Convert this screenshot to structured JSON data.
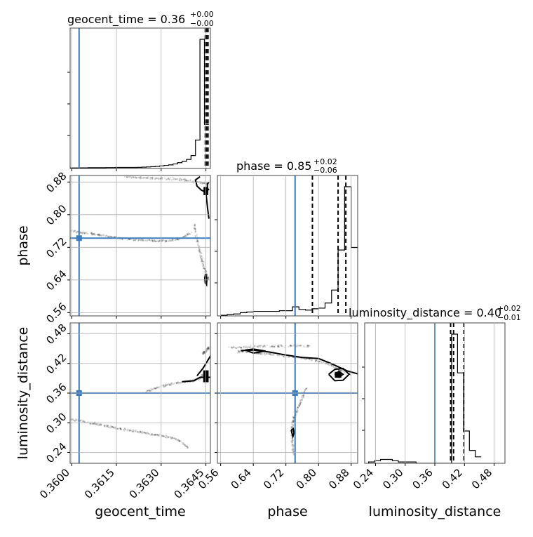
{
  "chart_data": {
    "type": "corner",
    "parameters": [
      "geocent_time",
      "phase",
      "luminosity_distance"
    ],
    "truths": {
      "geocent_time": 0.36025,
      "phase": 0.7425,
      "luminosity_distance": 0.36
    },
    "ranges": {
      "geocent_time": [
        0.35995,
        0.36465
      ],
      "phase": [
        0.552,
        0.896
      ],
      "luminosity_distance": [
        0.218,
        0.502
      ]
    },
    "ticks": {
      "geocent_time": {
        "values": [
          0.36,
          0.3615,
          0.363,
          0.3645
        ],
        "labels": [
          "0.3600",
          "0.3615",
          "0.3630",
          "0.3645"
        ]
      },
      "phase": {
        "values": [
          0.56,
          0.64,
          0.72,
          0.8,
          0.88
        ],
        "labels": [
          "0.56",
          "0.64",
          "0.72",
          "0.80",
          "0.88"
        ]
      },
      "luminosity_distance": {
        "values": [
          0.24,
          0.3,
          0.36,
          0.42,
          0.48
        ],
        "labels": [
          "0.24",
          "0.30",
          "0.36",
          "0.42",
          "0.48"
        ]
      }
    },
    "diagonal_titles": [
      {
        "param": "geocent_time",
        "text": "geocent_time = 0.36",
        "sup": "+0.00",
        "sub": "−0.00"
      },
      {
        "param": "phase",
        "text": "phase = 0.85",
        "sup": "+0.02",
        "sub": "−0.06"
      },
      {
        "param": "luminosity_distance",
        "text": "luminosity_distance = 0.40",
        "sup": "+0.02",
        "sub": "−0.01"
      }
    ],
    "quantiles": {
      "geocent_time": [
        0.36448,
        0.36452,
        0.36457
      ],
      "phase": [
        0.785,
        0.848,
        0.867
      ],
      "luminosity_distance": [
        0.392,
        0.398,
        0.419
      ]
    },
    "histograms": {
      "geocent_time": {
        "bins": [
          0.35995,
          0.3601,
          0.36025,
          0.3604,
          0.36055,
          0.3607,
          0.36085,
          0.361,
          0.36115,
          0.3613,
          0.36145,
          0.3616,
          0.36175,
          0.3619,
          0.36205,
          0.3622,
          0.36235,
          0.3625,
          0.36265,
          0.3628,
          0.36295,
          0.3631,
          0.36325,
          0.3634,
          0.36355,
          0.3637,
          0.36385,
          0.364,
          0.36415,
          0.3643,
          0.36445,
          0.3646
        ],
        "counts": [
          0.004,
          0.004,
          0.005,
          0.005,
          0.006,
          0.006,
          0.006,
          0.006,
          0.007,
          0.007,
          0.008,
          0.008,
          0.008,
          0.008,
          0.008,
          0.009,
          0.01,
          0.012,
          0.014,
          0.016,
          0.02,
          0.024,
          0.028,
          0.035,
          0.045,
          0.055,
          0.07,
          0.1,
          0.22,
          1.0,
          0.34
        ]
      },
      "phase": {
        "bins": [
          0.56,
          0.576,
          0.592,
          0.608,
          0.624,
          0.64,
          0.656,
          0.672,
          0.688,
          0.704,
          0.72,
          0.736,
          0.752,
          0.768,
          0.784,
          0.8,
          0.816,
          0.832,
          0.848,
          0.864,
          0.88,
          0.896
        ],
        "counts": [
          0.005,
          0.01,
          0.015,
          0.025,
          0.03,
          0.035,
          0.035,
          0.035,
          0.035,
          0.04,
          0.04,
          0.07,
          0.05,
          0.045,
          0.055,
          0.06,
          0.1,
          0.2,
          0.51,
          1.0,
          0.53
        ]
      },
      "luminosity_distance": {
        "bins": [
          0.226,
          0.238,
          0.25,
          0.262,
          0.274,
          0.286,
          0.298,
          0.31,
          0.322,
          0.334,
          0.346,
          0.358,
          0.37,
          0.382,
          0.394,
          0.406,
          0.418,
          0.43,
          0.442,
          0.454
        ],
        "counts": [
          0.01,
          0.02,
          0.03,
          0.03,
          0.02,
          0.01,
          0.01,
          0.01,
          0.0,
          0.0,
          0.0,
          0.0,
          0.0,
          0.0,
          1.0,
          0.7,
          0.25,
          0.1,
          0.05
        ]
      }
    },
    "hist2d": {
      "phase_vs_geocent_time": {
        "ridges": [
          {
            "x": [
              0.3618,
              0.3623,
              0.3628,
              0.3633,
              0.3638,
              0.3642,
              0.3646
            ],
            "y": [
              0.893,
              0.89,
              0.889,
              0.888,
              0.885,
              0.88,
              0.875
            ]
          },
          {
            "x": [
              0.36,
              0.3604,
              0.3608,
              0.3612,
              0.3616,
              0.362,
              0.3624,
              0.3628,
              0.3632,
              0.3636,
              0.364
            ],
            "y": [
              0.76,
              0.755,
              0.752,
              0.748,
              0.742,
              0.74,
              0.738,
              0.736,
              0.735,
              0.74,
              0.755
            ]
          },
          {
            "x": [
              0.3641,
              0.3642,
              0.3643,
              0.3644,
              0.3645,
              0.3646
            ],
            "y": [
              0.78,
              0.74,
              0.71,
              0.68,
              0.655,
              0.64
            ]
          }
        ],
        "contours": [
          {
            "x": [
              0.3643,
              0.36415,
              0.3642,
              0.36435,
              0.3645,
              0.36455,
              0.3646
            ],
            "y": [
              0.893,
              0.885,
              0.87,
              0.86,
              0.855,
              0.82,
              0.79
            ]
          },
          {
            "x": [
              0.36449,
              0.36446,
              0.36448,
              0.36452,
              0.36453,
              0.3645,
              0.36449
            ],
            "y": [
              0.655,
              0.645,
              0.632,
              0.628,
              0.64,
              0.652,
              0.655
            ]
          },
          {
            "x": [
              0.3646,
              0.36455,
              0.36455,
              0.3646
            ],
            "y": [
              0.88,
              0.875,
              0.865,
              0.86
            ]
          }
        ],
        "core": [
          {
            "x": 0.3645,
            "y": 0.858,
            "w": 8e-05,
            "h": 0.01
          }
        ]
      },
      "luminosity_distance_vs_geocent_time": {
        "ridges": [
          {
            "x": [
              0.36,
              0.3604,
              0.3608,
              0.3612,
              0.3616,
              0.362,
              0.3624,
              0.3628,
              0.3632,
              0.3636,
              0.3639
            ],
            "y": [
              0.307,
              0.302,
              0.298,
              0.293,
              0.288,
              0.284,
              0.28,
              0.276,
              0.272,
              0.265,
              0.25
            ]
          },
          {
            "x": [
              0.3624,
              0.3628,
              0.3632,
              0.3636,
              0.364,
              0.3643,
              0.3645
            ],
            "y": [
              0.36,
              0.37,
              0.377,
              0.381,
              0.384,
              0.39,
              0.4
            ]
          },
          {
            "x": [
              0.3644,
              0.3645,
              0.3646
            ],
            "y": [
              0.44,
              0.445,
              0.452
            ]
          }
        ],
        "contours": [
          {
            "x": [
              0.3642,
              0.3644,
              0.3646,
              0.3647
            ],
            "y": [
              0.395,
              0.41,
              0.43,
              0.44
            ]
          },
          {
            "x": [
              0.3637,
              0.3641,
              0.3643,
              0.3647,
              0.3647
            ],
            "y": [
              0.383,
              0.385,
              0.392,
              0.392,
              0.396
            ]
          },
          {
            "x": [
              0.36445,
              0.3645,
              0.36455,
              0.3645,
              0.36445
            ],
            "y": [
              0.39,
              0.402,
              0.39,
              0.385,
              0.39
            ]
          }
        ],
        "core": [
          {
            "x": 0.3645,
            "y": 0.394,
            "w": 9e-05,
            "h": 0.012
          }
        ]
      },
      "luminosity_distance_vs_phase": {
        "ridges": [
          {
            "x": [
              0.6,
              0.63,
              0.66,
              0.7,
              0.74,
              0.78,
              0.82,
              0.85,
              0.88
            ],
            "y": [
              0.445,
              0.443,
              0.44,
              0.437,
              0.433,
              0.428,
              0.42,
              0.408,
              0.398
            ]
          },
          {
            "x": [
              0.58,
              0.62,
              0.66,
              0.7,
              0.74,
              0.78
            ],
            "y": [
              0.452,
              0.453,
              0.455,
              0.455,
              0.456,
              0.455
            ]
          },
          {
            "x": [
              0.77,
              0.76,
              0.75,
              0.74,
              0.735,
              0.735,
              0.74
            ],
            "y": [
              0.37,
              0.35,
              0.33,
              0.31,
              0.29,
              0.26,
              0.235
            ]
          }
        ],
        "contours": [
          {
            "x": [
              0.61,
              0.64,
              0.68,
              0.72,
              0.76,
              0.8,
              0.83,
              0.87,
              0.9
            ],
            "y": [
              0.446,
              0.447,
              0.443,
              0.437,
              0.432,
              0.43,
              0.42,
              0.405,
              0.398
            ]
          },
          {
            "x": [
              0.62,
              0.64,
              0.67,
              0.64,
              0.62
            ],
            "y": [
              0.447,
              0.449,
              0.445,
              0.441,
              0.447
            ]
          },
          {
            "x": [
              0.825,
              0.84,
              0.86,
              0.875,
              0.86,
              0.84,
              0.825
            ],
            "y": [
              0.398,
              0.408,
              0.41,
              0.398,
              0.386,
              0.385,
              0.398
            ]
          },
          {
            "x": [
              0.84,
              0.85,
              0.86,
              0.85,
              0.84
            ],
            "y": [
              0.398,
              0.404,
              0.398,
              0.392,
              0.398
            ]
          },
          {
            "x": [
              0.733,
              0.738,
              0.74,
              0.737,
              0.733
            ],
            "y": [
              0.285,
              0.288,
              0.28,
              0.272,
              0.285
            ]
          }
        ],
        "core": [
          {
            "x": 0.848,
            "y": 0.397,
            "w": 0.008,
            "h": 0.006
          }
        ]
      }
    }
  }
}
